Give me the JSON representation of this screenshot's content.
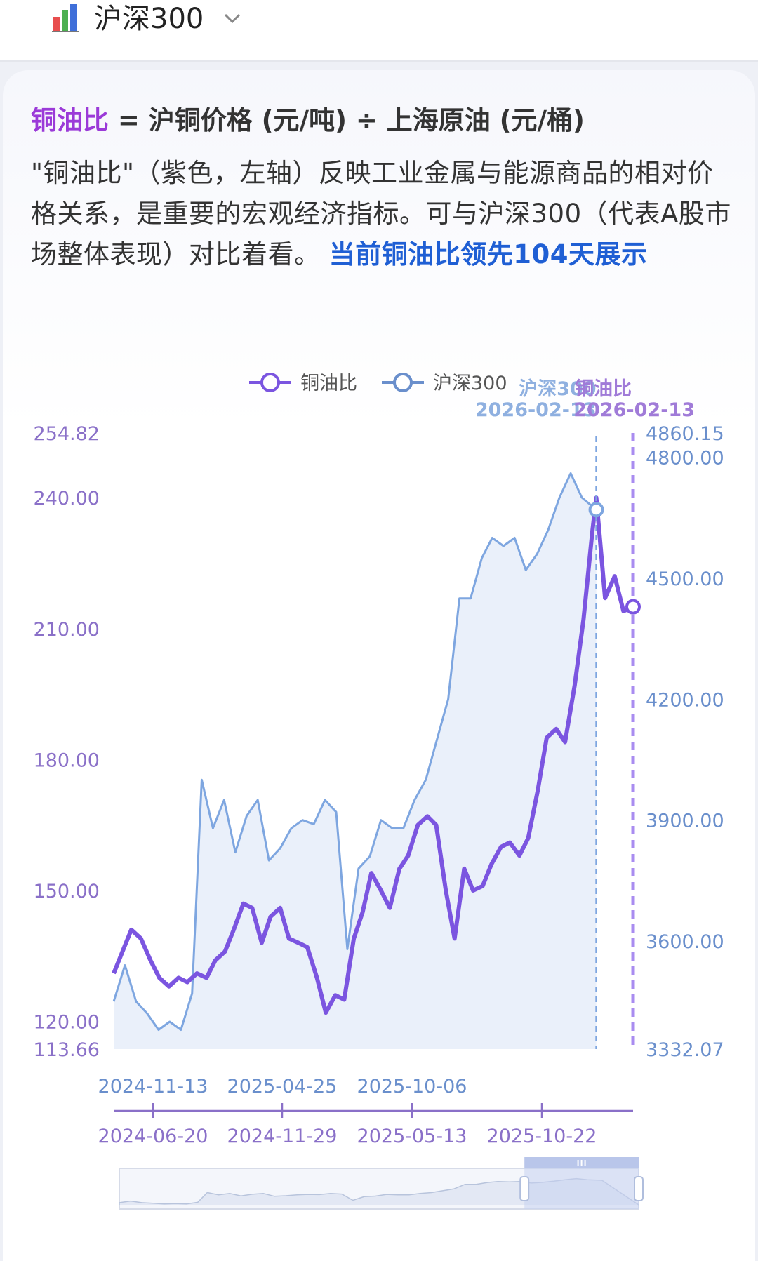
{
  "header": {
    "title": "沪深300",
    "chart_icon": "bar-chart-icon",
    "dropdown_icon": "chevron-down-icon"
  },
  "formula": {
    "highlight": "铜油比",
    "rest": " = 沪铜价格 (元/吨) ÷ 上海原油 (元/桶)"
  },
  "description": {
    "text": "\"铜油比\"（紫色，左轴）反映工业金属与能源商品的相对价格关系，是重要的宏观经济指标。可与沪深300（代表A股市场整体表现）对比着看。",
    "link": "当前铜油比领先104天展示"
  },
  "colors": {
    "copper_oil": "#7b55e0",
    "csi300": "#7ea6e0",
    "csi300_fill": "#e8eefa",
    "link": "#1f5fd4",
    "highlight": "#9b3ad8"
  },
  "chart_data": {
    "type": "line",
    "legend": [
      "铜油比",
      "沪深300"
    ],
    "legend_position": "top-center",
    "series": [
      {
        "name": "铜油比",
        "axis": "left",
        "x_axis_ticks": [
          "2024-06-20",
          "2024-11-29",
          "2025-05-13",
          "2025-10-22"
        ],
        "end_marker": {
          "label": "铜油比",
          "date": "2026-02-13"
        },
        "points": [
          [
            "2024-06-20",
            131
          ],
          [
            "2024-07-01",
            136
          ],
          [
            "2024-07-12",
            141
          ],
          [
            "2024-07-24",
            139
          ],
          [
            "2024-08-05",
            134
          ],
          [
            "2024-08-16",
            130
          ],
          [
            "2024-08-28",
            128
          ],
          [
            "2024-09-09",
            130
          ],
          [
            "2024-09-20",
            129
          ],
          [
            "2024-10-02",
            131
          ],
          [
            "2024-10-14",
            130
          ],
          [
            "2024-10-25",
            134
          ],
          [
            "2024-11-06",
            136
          ],
          [
            "2024-11-17",
            141
          ],
          [
            "2024-11-29",
            147
          ],
          [
            "2024-12-10",
            146
          ],
          [
            "2024-12-22",
            138
          ],
          [
            "2025-01-02",
            144
          ],
          [
            "2025-01-14",
            146
          ],
          [
            "2025-01-25",
            139
          ],
          [
            "2025-02-06",
            138
          ],
          [
            "2025-02-17",
            137
          ],
          [
            "2025-03-01",
            130
          ],
          [
            "2025-03-12",
            122
          ],
          [
            "2025-03-24",
            126
          ],
          [
            "2025-04-04",
            125
          ],
          [
            "2025-04-16",
            139
          ],
          [
            "2025-04-27",
            145
          ],
          [
            "2025-05-08",
            154
          ],
          [
            "2025-05-20",
            150
          ],
          [
            "2025-05-31",
            146
          ],
          [
            "2025-06-12",
            155
          ],
          [
            "2025-06-23",
            158
          ],
          [
            "2025-07-05",
            165
          ],
          [
            "2025-07-17",
            167
          ],
          [
            "2025-07-28",
            165
          ],
          [
            "2025-08-09",
            150
          ],
          [
            "2025-08-20",
            139
          ],
          [
            "2025-09-01",
            155
          ],
          [
            "2025-09-12",
            150
          ],
          [
            "2025-09-24",
            151
          ],
          [
            "2025-10-05",
            156
          ],
          [
            "2025-10-17",
            160
          ],
          [
            "2025-10-28",
            161
          ],
          [
            "2025-11-09",
            158
          ],
          [
            "2025-11-20",
            162
          ],
          [
            "2025-12-02",
            173
          ],
          [
            "2025-12-13",
            185
          ],
          [
            "2025-12-25",
            187
          ],
          [
            "2026-01-05",
            184
          ],
          [
            "2026-01-17",
            197
          ],
          [
            "2026-01-28",
            212
          ],
          [
            "2026-02-08",
            232
          ],
          [
            "2026-02-13",
            240
          ],
          [
            "2026-02-24",
            217
          ],
          [
            "2026-03-08",
            222
          ],
          [
            "2026-03-19",
            214
          ],
          [
            "2026-03-31",
            215
          ]
        ]
      },
      {
        "name": "沪深300",
        "axis": "right",
        "x_axis_ticks": [
          "2024-11-13",
          "2025-04-25",
          "2025-10-06"
        ],
        "end_marker": {
          "label": "沪深300",
          "date": "2026-02-13"
        },
        "points": [
          [
            "2024-06-20",
            3450
          ],
          [
            "2024-07-04",
            3540
          ],
          [
            "2024-07-18",
            3450
          ],
          [
            "2024-08-01",
            3420
          ],
          [
            "2024-08-15",
            3380
          ],
          [
            "2024-08-29",
            3400
          ],
          [
            "2024-09-12",
            3380
          ],
          [
            "2024-09-26",
            3470
          ],
          [
            "2024-10-08",
            4000
          ],
          [
            "2024-10-22",
            3880
          ],
          [
            "2024-11-05",
            3950
          ],
          [
            "2024-11-19",
            3820
          ],
          [
            "2024-12-03",
            3910
          ],
          [
            "2024-12-17",
            3950
          ],
          [
            "2024-12-31",
            3800
          ],
          [
            "2025-01-14",
            3830
          ],
          [
            "2025-01-28",
            3880
          ],
          [
            "2025-02-11",
            3900
          ],
          [
            "2025-02-25",
            3890
          ],
          [
            "2025-03-11",
            3950
          ],
          [
            "2025-03-25",
            3920
          ],
          [
            "2025-04-08",
            3580
          ],
          [
            "2025-04-22",
            3780
          ],
          [
            "2025-05-06",
            3810
          ],
          [
            "2025-05-20",
            3900
          ],
          [
            "2025-06-03",
            3880
          ],
          [
            "2025-06-17",
            3880
          ],
          [
            "2025-07-01",
            3950
          ],
          [
            "2025-07-15",
            4000
          ],
          [
            "2025-07-29",
            4100
          ],
          [
            "2025-08-12",
            4200
          ],
          [
            "2025-08-26",
            4450
          ],
          [
            "2025-09-09",
            4450
          ],
          [
            "2025-09-23",
            4550
          ],
          [
            "2025-10-06",
            4600
          ],
          [
            "2025-10-20",
            4580
          ],
          [
            "2025-11-03",
            4600
          ],
          [
            "2025-11-17",
            4520
          ],
          [
            "2025-12-01",
            4560
          ],
          [
            "2025-12-15",
            4620
          ],
          [
            "2025-12-29",
            4700
          ],
          [
            "2026-01-12",
            4760
          ],
          [
            "2026-01-26",
            4700
          ],
          [
            "2026-02-13",
            4670
          ]
        ]
      }
    ],
    "left_axis": {
      "range": [
        113.66,
        254.82
      ],
      "ticks": [
        "254.82",
        "240.00",
        "210.00",
        "180.00",
        "150.00",
        "120.00",
        "113.66"
      ]
    },
    "right_axis": {
      "range": [
        3332.07,
        4860.15
      ],
      "ticks": [
        "4860.15",
        "4800.00",
        "4500.00",
        "4200.00",
        "3900.00",
        "3600.00",
        "3332.07"
      ]
    },
    "datazoom": {
      "range_pct": [
        78,
        100
      ]
    }
  }
}
